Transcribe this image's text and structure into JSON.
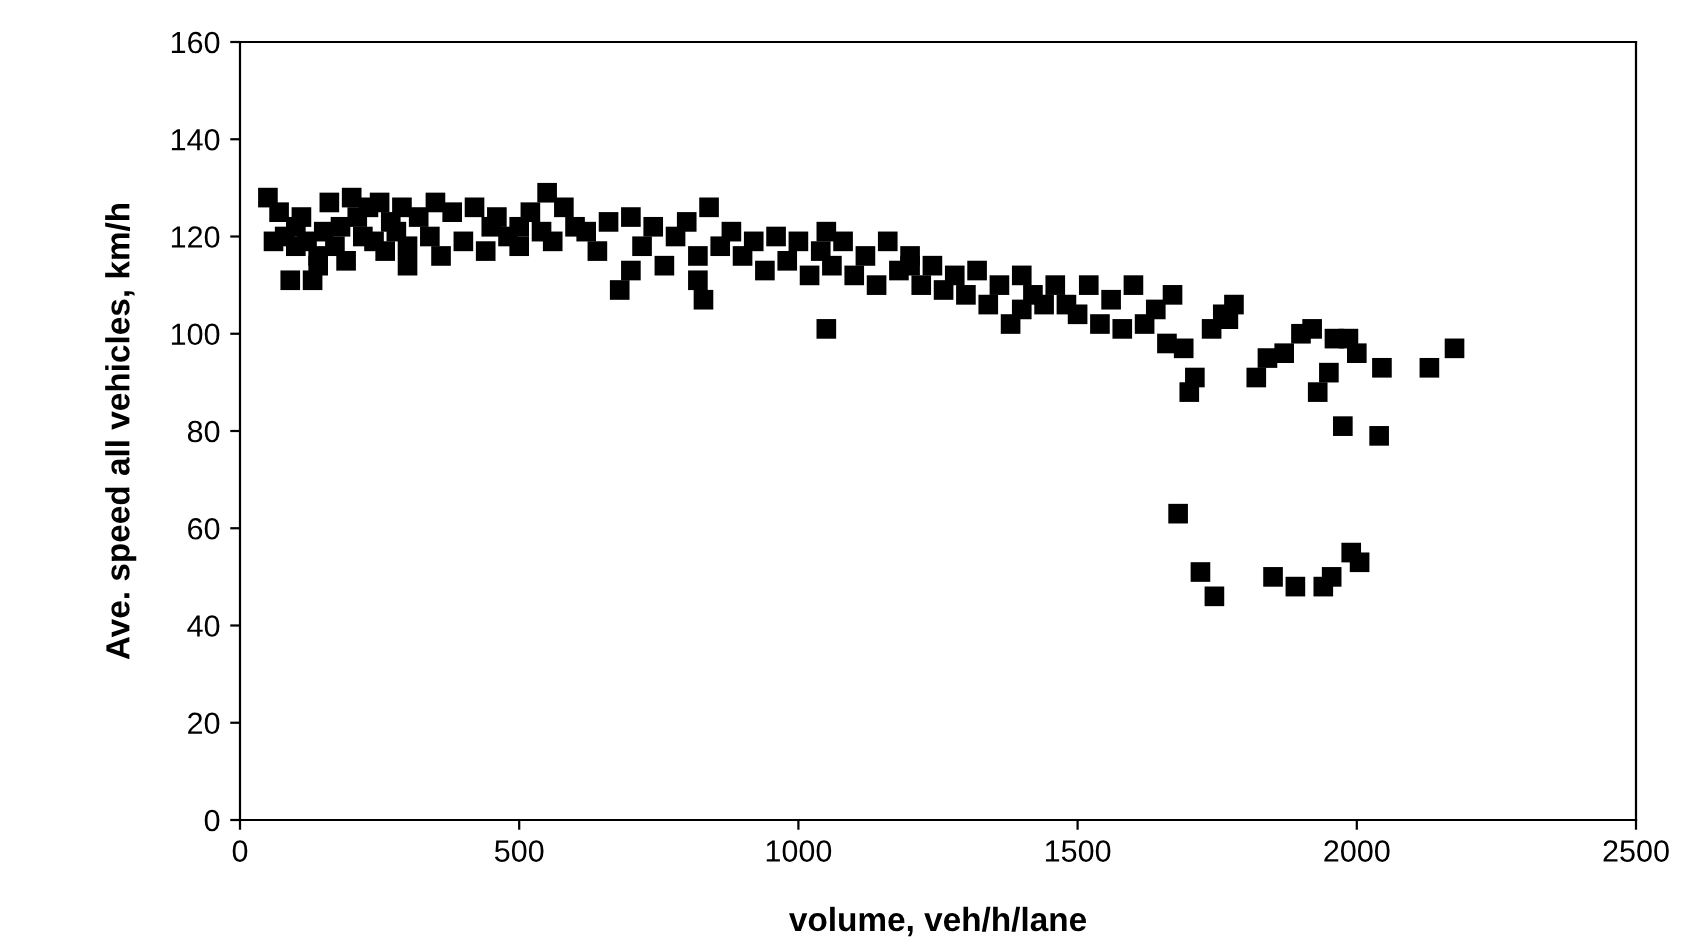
{
  "chart_data": {
    "type": "scatter",
    "xlabel": "volume, veh/h/lane",
    "ylabel": "Ave. speed all vehicles, km/h",
    "xlim": [
      0,
      2500
    ],
    "ylim": [
      0,
      160
    ],
    "xticks": [
      0,
      500,
      1000,
      1500,
      2000,
      2500
    ],
    "yticks": [
      0,
      20,
      40,
      60,
      80,
      100,
      120,
      140,
      160
    ],
    "grid": false,
    "marker": "square",
    "series": [
      {
        "color": "#000000",
        "x": [
          50,
          60,
          70,
          80,
          90,
          100,
          110,
          120,
          130,
          140,
          150,
          160,
          170,
          180,
          190,
          200,
          210,
          220,
          230,
          240,
          250,
          260,
          270,
          280,
          290,
          300,
          320,
          340,
          350,
          360,
          380,
          400,
          420,
          440,
          450,
          460,
          480,
          500,
          520,
          540,
          550,
          560,
          580,
          600,
          620,
          640,
          660,
          680,
          700,
          720,
          740,
          760,
          780,
          800,
          820,
          830,
          840,
          860,
          880,
          900,
          920,
          940,
          960,
          980,
          1000,
          1020,
          1040,
          1050,
          1060,
          1080,
          1100,
          1120,
          1140,
          1160,
          1180,
          1200,
          1220,
          1240,
          1260,
          1280,
          1300,
          1320,
          1340,
          1360,
          1380,
          1400,
          1420,
          1440,
          1460,
          1480,
          1500,
          1520,
          1540,
          1560,
          1580,
          1600,
          1620,
          1640,
          1660,
          1670,
          1680,
          1690,
          1700,
          1710,
          1720,
          1740,
          1745,
          1760,
          1770,
          1780,
          1820,
          1840,
          1850,
          1870,
          1890,
          1900,
          1920,
          1930,
          1940,
          1950,
          1955,
          1960,
          1975,
          1985,
          1990,
          2000,
          2005,
          2040,
          2045,
          2130,
          2175,
          100,
          140,
          300,
          500,
          700,
          820,
          1050,
          1200,
          1400
        ],
        "values": [
          128,
          119,
          125,
          120,
          111,
          118,
          124,
          119,
          111,
          116,
          121,
          127,
          118,
          122,
          115,
          128,
          124,
          120,
          126,
          119,
          127,
          117,
          123,
          121,
          126,
          118,
          124,
          120,
          127,
          116,
          125,
          119,
          126,
          117,
          122,
          124,
          120,
          118,
          125,
          121,
          129,
          119,
          126,
          122,
          121,
          117,
          123,
          109,
          124,
          118,
          122,
          114,
          120,
          123,
          116,
          107,
          126,
          118,
          121,
          116,
          119,
          113,
          120,
          115,
          119,
          112,
          117,
          101,
          114,
          119,
          112,
          116,
          110,
          119,
          113,
          116,
          110,
          114,
          109,
          112,
          108,
          113,
          106,
          110,
          102,
          112,
          108,
          106,
          110,
          106,
          104,
          110,
          102,
          107,
          101,
          110,
          102,
          105,
          98,
          108,
          63,
          97,
          88,
          91,
          51,
          101,
          46,
          104,
          103,
          106,
          91,
          95,
          50,
          96,
          48,
          100,
          101,
          88,
          48,
          92,
          50,
          99,
          81,
          99,
          55,
          96,
          53,
          79,
          93,
          93,
          97,
          122,
          114,
          114,
          122,
          113,
          111,
          121,
          114,
          105
        ]
      }
    ]
  }
}
